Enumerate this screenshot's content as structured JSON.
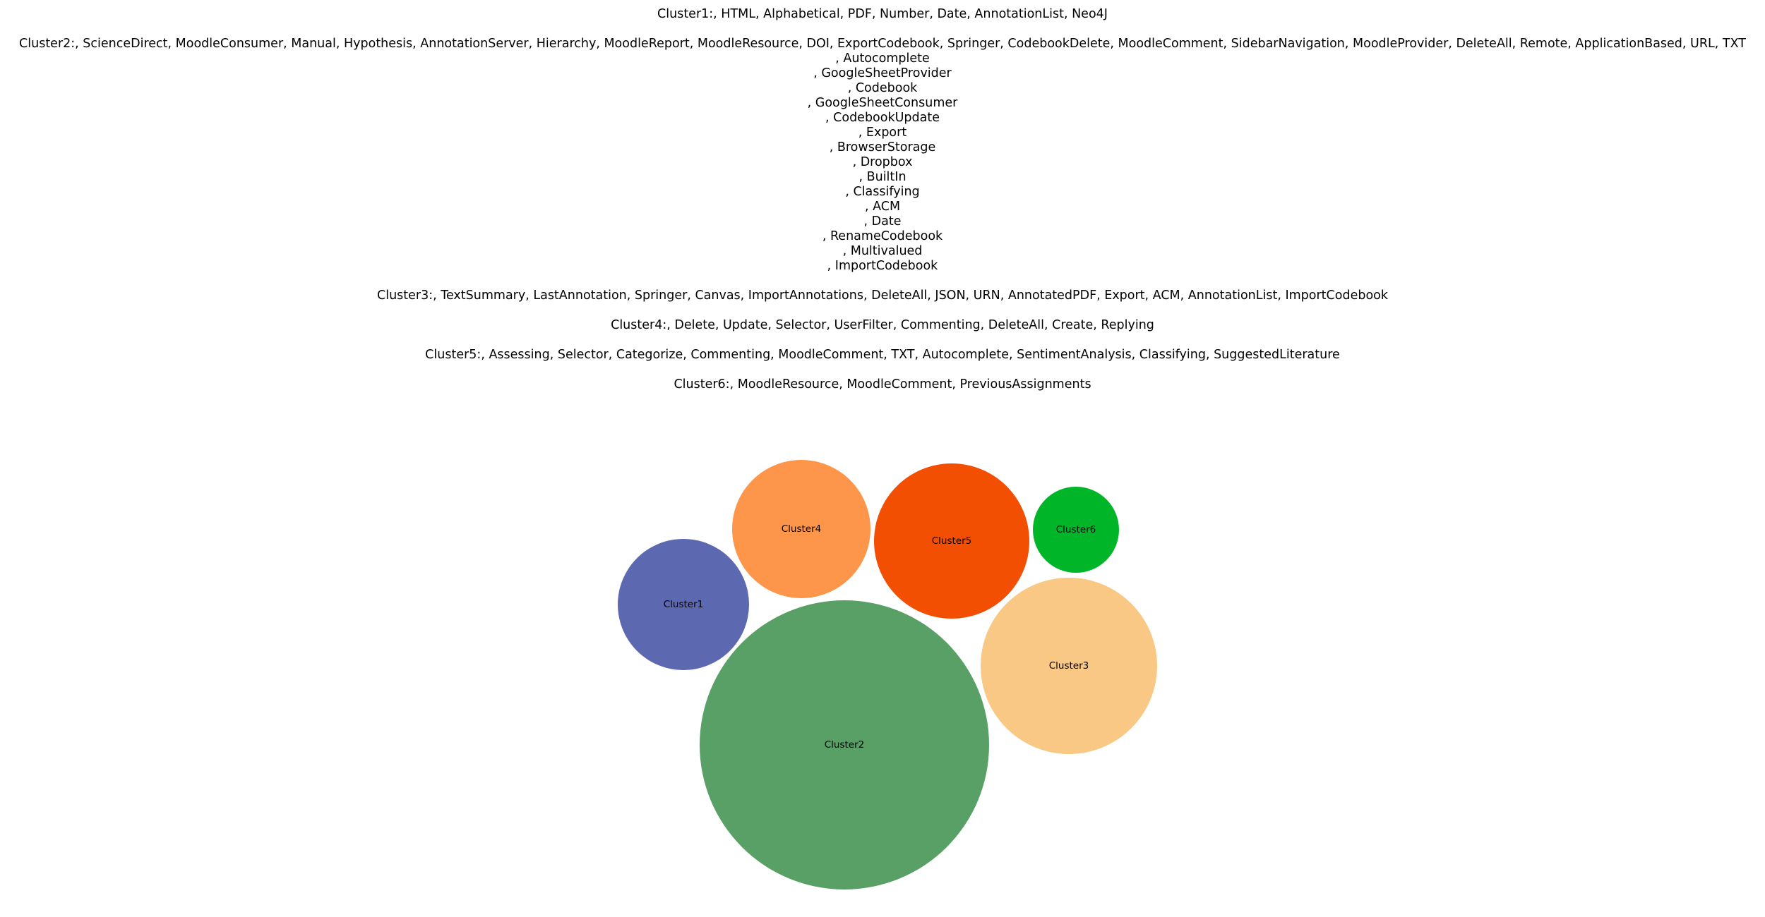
{
  "chart_data": {
    "type": "bubble",
    "title": "",
    "grid": false,
    "legend": "none",
    "clusters": [
      {
        "name": "Cluster1",
        "color": "#5c69b1",
        "size": 8,
        "description": [
          "Cluster1:, HTML, Alphabetical, PDF, Number, Date, AnnotationList, Neo4J"
        ]
      },
      {
        "name": "Cluster2",
        "color": "#58a066",
        "size": 38,
        "description": [
          "Cluster2:, ScienceDirect, MoodleConsumer, Manual, Hypothesis, AnnotationServer, Hierarchy, MoodleReport, MoodleResource, DOI, ExportCodebook, Springer, CodebookDelete, MoodleComment, SidebarNavigation, MoodleProvider, DeleteAll, Remote, ApplicationBased, URL, TXT",
          ", Autocomplete",
          ", GoogleSheetProvider",
          ", Codebook",
          ", GoogleSheetConsumer",
          ", CodebookUpdate",
          ", Export",
          ", BrowserStorage",
          ", Dropbox",
          ", BuiltIn",
          ", Classifying",
          ", ACM",
          ", Date",
          ", RenameCodebook",
          ", Multivalued",
          ", ImportCodebook"
        ]
      },
      {
        "name": "Cluster3",
        "color": "#f8c884",
        "size": 14,
        "description": [
          "Cluster3:, TextSummary, LastAnnotation, Springer, Canvas, ImportAnnotations, DeleteAll, JSON, URN, AnnotatedPDF, Export, ACM, AnnotationList, ImportCodebook"
        ]
      },
      {
        "name": "Cluster4",
        "color": "#fd964a",
        "size": 9,
        "description": [
          "Cluster4:, Delete, Update, Selector, UserFilter, Commenting, DeleteAll, Create, Replying"
        ]
      },
      {
        "name": "Cluster5",
        "color": "#f24f02",
        "size": 11,
        "description": [
          "Cluster5:, Assessing, Selector, Categorize, Commenting, MoodleComment, TXT, Autocomplete, SentimentAnalysis, Classifying, SuggestedLiterature"
        ]
      },
      {
        "name": "Cluster6",
        "color": "#00b527",
        "size": 3,
        "description": [
          "Cluster6:, MoodleResource, MoodleComment, PreviousAssignments"
        ]
      }
    ]
  }
}
